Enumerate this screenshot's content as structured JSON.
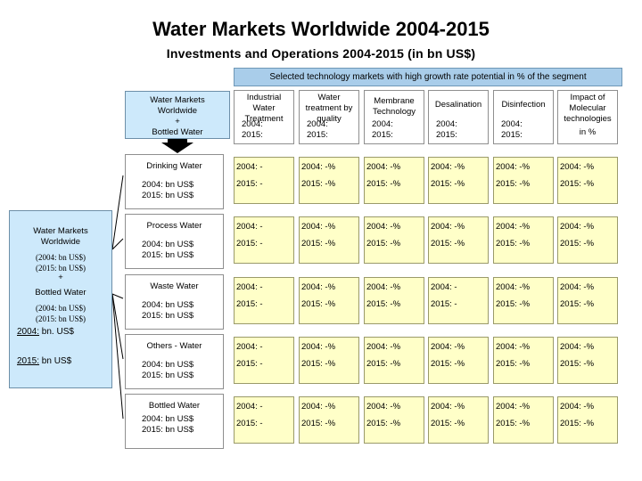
{
  "title": "Water Markets Worldwide 2004-2015",
  "subtitle": "Investments and Operations 2004-2015 (in bn US$)",
  "banner": "Selected technology markets with high growth rate potential in % of the segment",
  "top_box": {
    "line1": "Water Markets",
    "line2": "Worldwide",
    "line3": "+",
    "line4": "Bottled Water"
  },
  "left_box": {
    "line1": "Water Markets",
    "line2": "Worldwide",
    "line3": "(2004: bn US$)",
    "line4": "(2015: bn US$)",
    "line5": "+",
    "line6": "Bottled Water",
    "line7": "(2004: bn US$)",
    "line8": "(2015: bn US$)",
    "v2004_label": "2004:",
    "v2004_unit": " bn. US$",
    "v2015_label": "2015:",
    "v2015_unit": " bn US$"
  },
  "columns": [
    {
      "name": [
        "Industrial",
        "Water",
        "Treatment"
      ],
      "y1": "2004:",
      "y2": "2015:"
    },
    {
      "name": [
        "Water",
        "treatment by",
        "quality"
      ],
      "y1": "2004:",
      "y2": "2015:"
    },
    {
      "name": [
        "Membrane",
        "Technology"
      ],
      "y1": "2004:",
      "y2": "2015:"
    },
    {
      "name": [
        "Desalination"
      ],
      "y1": "2004:",
      "y2": "2015:"
    },
    {
      "name": [
        "Disinfection"
      ],
      "y1": "2004:",
      "y2": "2015:"
    },
    {
      "name": [
        "Impact of",
        "Molecular",
        "technologies",
        "in %"
      ],
      "y1": "",
      "y2": ""
    }
  ],
  "segments": [
    {
      "name": "Drinking Water",
      "v1": "2004:   bn US$",
      "v2": "2015:  bn US$",
      "cells": [
        [
          "2004: -",
          "2015: -"
        ],
        [
          "2004: -%",
          "2015: -%"
        ],
        [
          "2004: -%",
          "2015: -%"
        ],
        [
          "2004: -%",
          "2015: -%"
        ],
        [
          "2004: -%",
          "2015: -%"
        ],
        [
          "2004: -%",
          "2015: -%"
        ]
      ]
    },
    {
      "name": "Process Water",
      "v1": "2004: bn US$",
      "v2": "2015:  bn US$",
      "cells": [
        [
          "2004: -",
          "2015: -"
        ],
        [
          "2004: -%",
          "2015: -%"
        ],
        [
          "2004: -%",
          "2015: -%"
        ],
        [
          "2004: -%",
          "2015: -%"
        ],
        [
          "2004: -%",
          "2015: -%"
        ],
        [
          "2004: -%",
          "2015: -%"
        ]
      ]
    },
    {
      "name": "Waste Water",
      "v1": "2004: bn US$",
      "v2": "2015: bn US$",
      "cells": [
        [
          "2004: -",
          "2015: -"
        ],
        [
          "2004: -%",
          "2015: -%"
        ],
        [
          "2004: -%",
          "2015: -%"
        ],
        [
          "2004: -",
          "2015: -"
        ],
        [
          "2004:  -%",
          "2015:  -%"
        ],
        [
          "2004:  -%",
          "2015: -%"
        ]
      ]
    },
    {
      "name": "Others - Water",
      "v1": "2004: bn US$",
      "v2": "2015: bn US$",
      "cells": [
        [
          "2004: -",
          "2015: -"
        ],
        [
          "2004: -%",
          "2015: -%"
        ],
        [
          "2004: -%",
          "2015: -%"
        ],
        [
          "2004: -%",
          "2015: -%"
        ],
        [
          "2004:  -%",
          "2015:  -%"
        ],
        [
          "2004:  -%",
          "2015:  -%"
        ]
      ]
    },
    {
      "name": "Bottled Water",
      "v1": "2004: bn US$",
      "v2": "2015: bn US$",
      "cells": [
        [
          "2004: -",
          "2015: -"
        ],
        [
          "2004: -%",
          "2015: -%"
        ],
        [
          "2004: -%",
          "2015: -%"
        ],
        [
          "2004: -%",
          "2015: -%"
        ],
        [
          "2004: -%",
          "2015: -%"
        ],
        [
          "2004:  -%",
          "2015: -%"
        ]
      ]
    }
  ]
}
